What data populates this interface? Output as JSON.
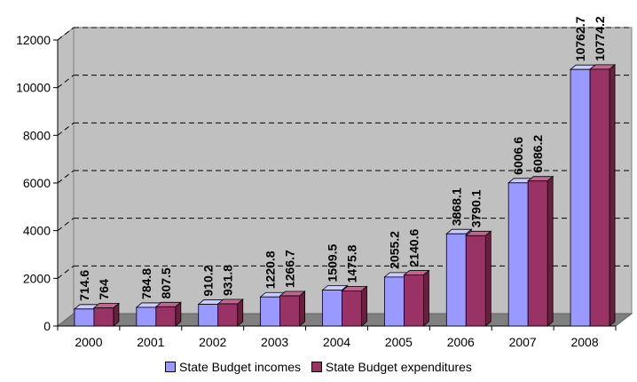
{
  "chart_data": {
    "type": "bar",
    "categories": [
      "2000",
      "2001",
      "2002",
      "2003",
      "2004",
      "2005",
      "2006",
      "2007",
      "2008"
    ],
    "series": [
      {
        "name": "State Budget incomes",
        "values": [
          714.6,
          784.8,
          910.2,
          1220.8,
          1509.5,
          2055.2,
          3868.1,
          6006.6,
          10762.7
        ],
        "labels": [
          "714.6",
          "784.8",
          "910.2",
          "1220.8",
          "1509.5",
          "2055.2",
          "3868.1",
          "6006.6",
          "10762.7"
        ]
      },
      {
        "name": "State Budget expenditures",
        "values": [
          764,
          807.5,
          931.8,
          1266.7,
          1475.8,
          2140.6,
          3790.1,
          6086.2,
          10774.2
        ],
        "labels": [
          "764",
          "807.5",
          "931.8",
          "1266.7",
          "1475.8",
          "2140.6",
          "3790.1",
          "6086.2",
          "10774.2"
        ]
      }
    ],
    "ylim": [
      0,
      12000
    ],
    "yticks": [
      "0",
      "2000",
      "4000",
      "6000",
      "8000",
      "10000",
      "12000"
    ],
    "grid": true,
    "legend_position": "bottom",
    "colors": {
      "incomes_front": "#9999ff",
      "incomes_top": "#ccccff",
      "incomes_side": "#6666cc",
      "expend_front": "#993366",
      "expend_top": "#c0668f",
      "expend_side": "#66213f",
      "wall": "#c0c0c0",
      "floor": "#808080"
    }
  }
}
